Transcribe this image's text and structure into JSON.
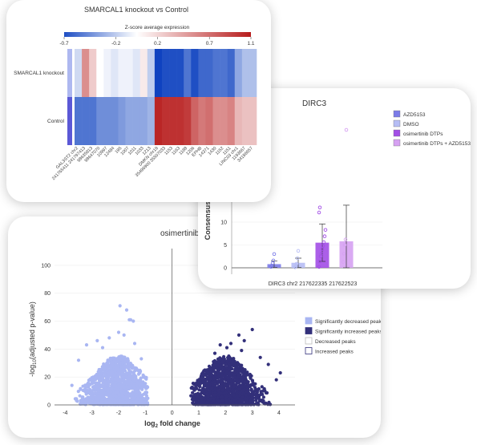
{
  "chart_data": [
    {
      "type": "heatmap",
      "title": "SMARCAL1 knockout vs Control",
      "colorbar": {
        "title": "Z-score average expression",
        "ticks": [
          "-0.7",
          "-0.2",
          "0.2",
          "0.7",
          "1.1"
        ],
        "tick_values": [
          -0.7,
          -0.2,
          0.2,
          0.7,
          1.1
        ],
        "range": [
          -0.7,
          1.1
        ],
        "colors": [
          "#1f4fc4",
          "#ffffff",
          "#b71c1c"
        ]
      },
      "rows": [
        "SMARCAL1 knockout",
        "Control"
      ],
      "columns": [
        "GAL3ST2 chr2",
        "241765411 241797413",
        "98635813",
        "98647070",
        "10997",
        "12484",
        "195",
        "1007",
        "1011",
        "1033",
        "1213",
        "DMKN chr19",
        "35496900 35507033",
        "1153",
        "1163",
        "1188",
        "1206",
        "EPHB",
        "14371",
        "1430",
        "1152",
        "1151",
        "LINC03 chr1",
        "1193667",
        "34186657"
      ],
      "values": [
        [
          -0.15,
          0.55,
          0.25,
          0.0,
          -0.05,
          -0.1,
          -0.05,
          -0.05,
          -0.1,
          0.1,
          -0.2,
          -0.75,
          -0.7,
          -0.7,
          -0.7,
          -0.55,
          -0.7,
          -0.6,
          -0.6,
          -0.55,
          -0.55,
          -0.6,
          -0.35,
          -0.25,
          -0.25
        ],
        [
          -0.55,
          -0.55,
          -0.55,
          -0.45,
          -0.45,
          -0.45,
          -0.4,
          -0.35,
          -0.35,
          -0.35,
          -0.3,
          1.05,
          1.0,
          1.0,
          1.0,
          0.95,
          0.75,
          0.65,
          0.7,
          0.55,
          0.55,
          0.6,
          0.35,
          0.3,
          0.3
        ]
      ]
    },
    {
      "type": "bar",
      "title": "DIRC3",
      "ylabel": "Consensus",
      "category_label": "DIRC3 chr2 217622335 217622523",
      "ylim": [
        -1,
        15
      ],
      "yticks": [
        0,
        5,
        10
      ],
      "legend_position": "top-right",
      "series": [
        {
          "name": "AZD5153",
          "mean": 0.8,
          "error": 0.7,
          "color": "#7b7be8",
          "points": [
            0.2,
            0.5,
            1.0,
            1.6,
            3.0
          ]
        },
        {
          "name": "DMSO",
          "mean": 1.1,
          "error": 1.0,
          "color": "#b6bdf5",
          "points": [
            0.1,
            0.3,
            0.9,
            2.1,
            3.7
          ]
        },
        {
          "name": "osimertinib DTPs",
          "mean": 5.5,
          "error": 4.1,
          "color": "#a24ee6",
          "points": [
            0.2,
            1.4,
            2.5,
            3.1,
            4.1,
            4.8,
            5.6,
            6.9,
            8.3,
            12.1,
            13.2
          ]
        },
        {
          "name": "osimertinib DTPs + AZD5153",
          "mean": 5.8,
          "error": 7.9,
          "color": "#d6a1f2",
          "points": [
            1.3,
            3.1,
            5.0,
            6.2,
            33.0
          ]
        }
      ]
    },
    {
      "type": "scatter",
      "title": "osimertinib D",
      "xlabel": "log2 fold change",
      "xlabel_main": "log",
      "xlabel_sub": "2",
      "xlabel_rest": " fold change",
      "ylabel": "-log10(adjusted p-value)",
      "ylabel_main": "-log",
      "ylabel_sub": "10",
      "ylabel_rest": "(adjusted p-value)",
      "xlim": [
        -4.4,
        4.6
      ],
      "ylim": [
        0,
        112
      ],
      "xticks": [
        -4,
        -3,
        -2,
        -1,
        0,
        1,
        2,
        3,
        4
      ],
      "yticks": [
        0,
        20,
        40,
        60,
        80,
        100
      ],
      "legend_position": "right",
      "series": [
        {
          "name": "Significantly decreased peaks",
          "color": "#a9b6f2",
          "cluster_center": -2,
          "x_range": [
            -4.0,
            -0.9
          ],
          "points": [
            [
              -1.95,
              71
            ],
            [
              -1.7,
              68
            ],
            [
              -1.6,
              61
            ],
            [
              -1.55,
              61
            ],
            [
              -1.45,
              60
            ],
            [
              -2.8,
              46
            ],
            [
              -3.2,
              43
            ],
            [
              -2.35,
              48
            ],
            [
              -2.6,
              41
            ],
            [
              -1.4,
              44
            ],
            [
              -1.15,
              33
            ],
            [
              -3.5,
              32
            ],
            [
              -2.0,
              52
            ],
            [
              -1.8,
              50
            ],
            [
              -3.75,
              14
            ]
          ]
        },
        {
          "name": "Significantly increased peaks",
          "color": "#33307a",
          "cluster_center": 2,
          "x_range": [
            0.7,
            4.1
          ],
          "points": [
            [
              3.0,
              54
            ],
            [
              2.5,
              50
            ],
            [
              2.7,
              46
            ],
            [
              1.8,
              43
            ],
            [
              2.2,
              44
            ],
            [
              3.3,
              34
            ],
            [
              3.6,
              29
            ],
            [
              4.05,
              23
            ],
            [
              2.05,
              41
            ],
            [
              2.6,
              39
            ],
            [
              1.6,
              37
            ],
            [
              3.9,
              18
            ]
          ]
        },
        {
          "name": "Decreased peaks",
          "color": "#ffffff",
          "points": []
        },
        {
          "name": "Increased peaks",
          "color": "#ffffff",
          "points": []
        }
      ]
    }
  ]
}
